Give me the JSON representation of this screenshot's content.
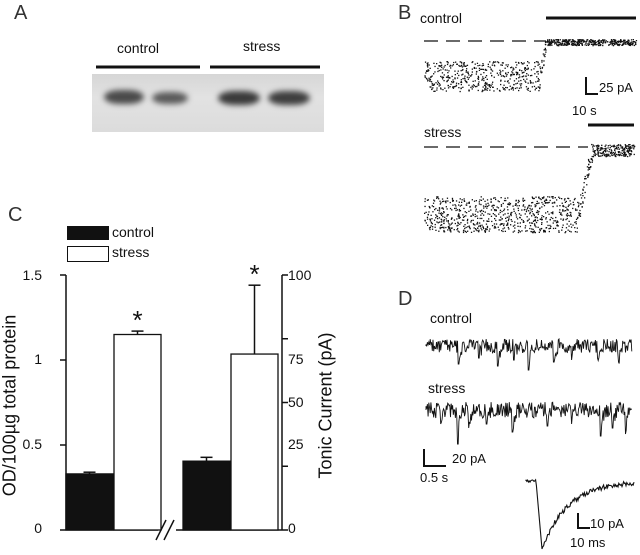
{
  "panels": {
    "a": "A",
    "b": "B",
    "c": "C",
    "d": "D"
  },
  "panel_a": {
    "lane_labels": [
      "control",
      "stress"
    ]
  },
  "panel_b": {
    "traces": [
      "control",
      "stress"
    ],
    "scale_current": "25 pA",
    "scale_time": "10 s"
  },
  "panel_d": {
    "traces": [
      "control",
      "stress"
    ],
    "scale_current": "20 pA",
    "scale_time": "0.5 s",
    "inset_scale_current": "10 pA",
    "inset_scale_time": "10 ms"
  },
  "chart_data": {
    "type": "bar",
    "legend": [
      "control",
      "stress"
    ],
    "legend_position": "top-left",
    "ylabel_left": "OD/100µg total protein",
    "ylabel_right": "Tonic Current (pA)",
    "left_axis": {
      "ylim": [
        0,
        1.5
      ],
      "ticks": [
        "0",
        "0.5",
        "1",
        "1.5"
      ]
    },
    "right_axis": {
      "ylim": [
        0,
        100
      ],
      "ticks": [
        "0",
        "25",
        "50",
        "75",
        "100"
      ]
    },
    "groups": [
      {
        "axis": "left",
        "bars": [
          {
            "series": "control",
            "value": 0.33,
            "error": 0.01
          },
          {
            "series": "stress",
            "value": 1.15,
            "error": 0.02,
            "significance": "*"
          }
        ]
      },
      {
        "axis": "right",
        "bars": [
          {
            "series": "control",
            "value": 27,
            "error": 1.5
          },
          {
            "series": "stress",
            "value": 69,
            "error": 27,
            "significance": "*"
          }
        ]
      }
    ]
  }
}
